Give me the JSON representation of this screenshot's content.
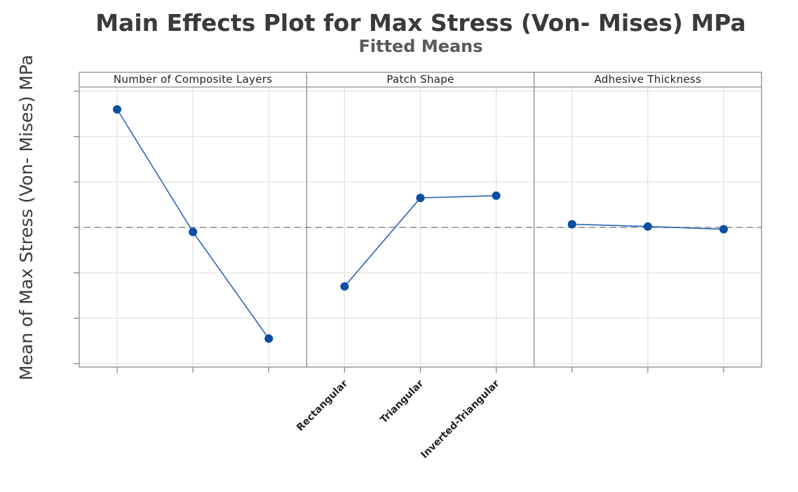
{
  "chart_data": {
    "type": "line",
    "title": "Main Effects Plot for Max Stress (Von- Mises) MPa",
    "subtitle": "Fitted Means",
    "xlabel": "",
    "ylabel": "Mean of Max Stress (Von- Mises) MPa",
    "ylim": [
      0,
      6
    ],
    "grid": true,
    "reference_line": 3.0,
    "panels": [
      {
        "name": "Number of Composite Layers",
        "categories": [
          "",
          "",
          ""
        ],
        "values": [
          5.6,
          2.9,
          0.55
        ]
      },
      {
        "name": "Patch Shape",
        "categories": [
          "Rectangular",
          "Triangular",
          "Inverted-Triangular"
        ],
        "values": [
          1.7,
          3.65,
          3.7
        ]
      },
      {
        "name": "Adhesive Thickness",
        "categories": [
          "",
          "",
          ""
        ],
        "values": [
          3.07,
          3.02,
          2.96
        ]
      }
    ]
  },
  "colors": {
    "series": "#2b65b4",
    "point": "#0b4ea2",
    "reference": "#a7a7a7"
  }
}
